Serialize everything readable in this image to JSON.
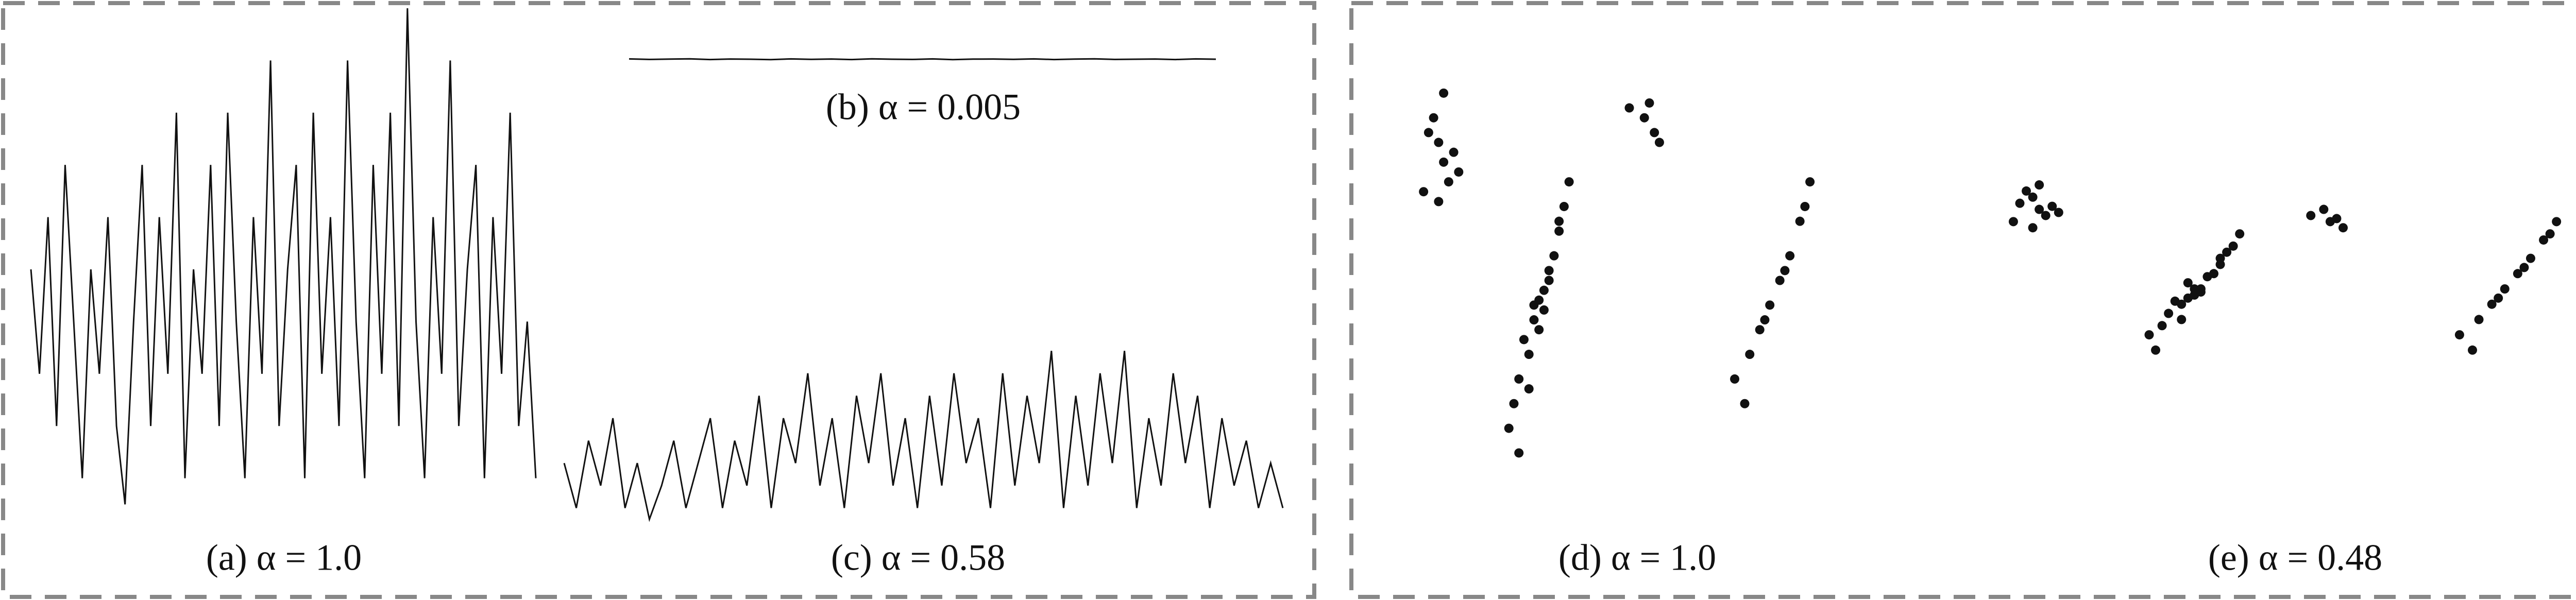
{
  "chart_data": [
    {
      "type": "line",
      "title": "(a) α = 1.0",
      "color": "#111",
      "ylim": [
        0,
        10
      ],
      "values": [
        5,
        3,
        6,
        2,
        7,
        4,
        1,
        5,
        3,
        6,
        2,
        0.5,
        4,
        7,
        2,
        6,
        3,
        8,
        1,
        5,
        3,
        7,
        2,
        8,
        4,
        1,
        6,
        3,
        9,
        2,
        5,
        7,
        1,
        8,
        3,
        6,
        2,
        9,
        4,
        1,
        7,
        3,
        8,
        2,
        10,
        4,
        1,
        6,
        3,
        9,
        2,
        5,
        7,
        1,
        6,
        3,
        8,
        2,
        4,
        1
      ]
    },
    {
      "type": "line",
      "title": "(b) α = 0.005",
      "color": "#111",
      "ylim": [
        -10,
        10
      ],
      "values": [
        0.3,
        -0.2,
        0.1,
        0.4,
        -0.3,
        0.2,
        0,
        -0.4,
        0.3,
        -0.1,
        0.2,
        -0.3,
        0.4,
        0,
        -0.2,
        0.3,
        -0.4,
        0.1,
        0.2,
        -0.1,
        0.3,
        -0.3,
        0.1,
        0.4,
        -0.2,
        0,
        0.2,
        -0.3,
        0.3,
        0
      ]
    },
    {
      "type": "line",
      "title": "(c) α = 0.58",
      "color": "#111",
      "ylim": [
        0,
        10
      ],
      "values": [
        3,
        1,
        4,
        2,
        5,
        1,
        3,
        0.5,
        2,
        4,
        1,
        3,
        5,
        1,
        4,
        2,
        6,
        1,
        5,
        3,
        7,
        2,
        5,
        1,
        6,
        3,
        7,
        2,
        5,
        1,
        6,
        2,
        7,
        3,
        5,
        1,
        7,
        2,
        6,
        3,
        8,
        1,
        6,
        2,
        7,
        3,
        8,
        1,
        5,
        2,
        7,
        3,
        6,
        1,
        5,
        2,
        4,
        1,
        3,
        1
      ]
    },
    {
      "type": "scatter",
      "title": "(d) α = 1.0",
      "color": "#111",
      "xlim": [
        0,
        100
      ],
      "ylim": [
        0,
        100
      ],
      "x": [
        12,
        14,
        15,
        16,
        13,
        17,
        15,
        11,
        18,
        14,
        28,
        30,
        32,
        34,
        33,
        36,
        38,
        31,
        35,
        37,
        40,
        29,
        33,
        36,
        39,
        34,
        32,
        30,
        38,
        35,
        52,
        55,
        57,
        58,
        56,
        73,
        76,
        78,
        80,
        82,
        84,
        86,
        88,
        79,
        83,
        75,
        87
      ],
      "values": [
        80,
        78,
        74,
        70,
        83,
        76,
        88,
        68,
        72,
        66,
        20,
        30,
        35,
        40,
        45,
        50,
        60,
        38,
        48,
        55,
        70,
        25,
        42,
        52,
        65,
        46,
        28,
        15,
        62,
        44,
        85,
        83,
        80,
        78,
        86,
        30,
        35,
        40,
        45,
        50,
        55,
        62,
        70,
        42,
        52,
        25,
        65
      ]
    },
    {
      "type": "scatter",
      "title": "(e) α = 0.48",
      "color": "#111",
      "xlim": [
        0,
        100
      ],
      "ylim": [
        0,
        100
      ],
      "x": [
        10,
        12,
        13,
        14,
        11,
        15,
        13,
        9,
        16,
        12,
        30,
        33,
        35,
        37,
        36,
        40,
        42,
        34,
        38,
        41,
        44,
        32,
        36,
        39,
        43,
        37,
        35,
        31,
        41,
        38,
        55,
        58,
        60,
        57,
        59,
        78,
        81,
        83,
        85,
        87,
        89,
        91,
        93,
        84,
        88,
        80,
        92
      ],
      "values": [
        78,
        80,
        76,
        74,
        82,
        77,
        84,
        72,
        75,
        70,
        35,
        42,
        45,
        48,
        52,
        55,
        62,
        46,
        50,
        58,
        68,
        38,
        47,
        54,
        64,
        50,
        40,
        30,
        60,
        49,
        74,
        72,
        70,
        76,
        73,
        35,
        40,
        45,
        50,
        55,
        60,
        66,
        72,
        47,
        57,
        30,
        68
      ]
    }
  ]
}
